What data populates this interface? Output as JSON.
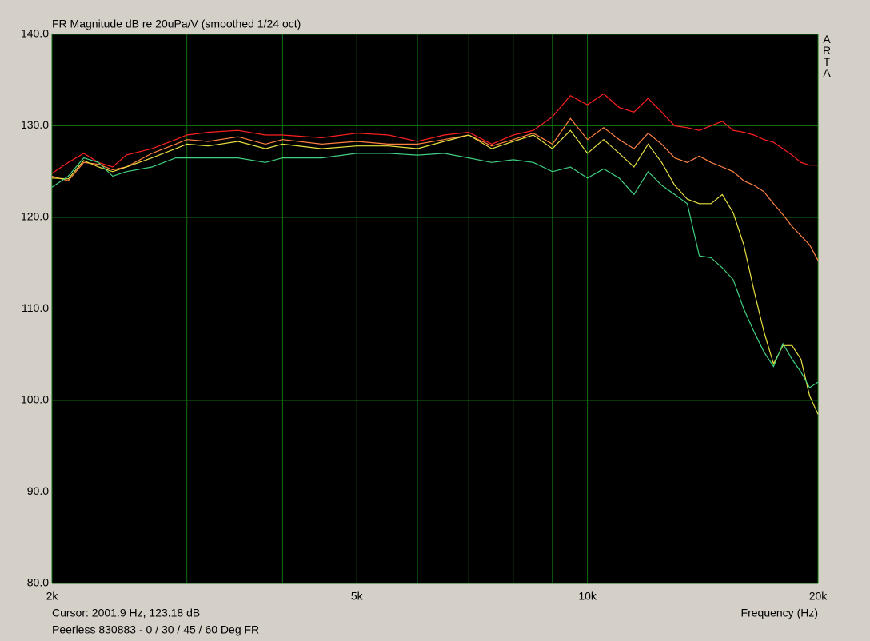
{
  "chart_data": {
    "type": "line",
    "title": "FR Magnitude dB re 20uPa/V (smoothed 1/24 oct)",
    "brand": "ARTA",
    "cursor_text": "Cursor: 2001.9 Hz, 123.18 dB",
    "x_label": "Frequency (Hz)",
    "caption": "Peerless 830883 - 0 / 30 / 45 / 60 Deg FR",
    "x_scale": "log",
    "grid": true,
    "xlim": [
      2000,
      20000
    ],
    "ylim": [
      80,
      140
    ],
    "xticks": [
      {
        "value": 2000,
        "label": "2k"
      },
      {
        "value": 5000,
        "label": "5k"
      },
      {
        "value": 10000,
        "label": "10k"
      },
      {
        "value": 20000,
        "label": "20k"
      }
    ],
    "xminorticks": [
      3000,
      4000,
      6000,
      7000,
      8000,
      9000
    ],
    "yticks": [
      {
        "value": 80,
        "label": "80.0"
      },
      {
        "value": 90,
        "label": "90.0"
      },
      {
        "value": 100,
        "label": "100.0"
      },
      {
        "value": 110,
        "label": "110.0"
      },
      {
        "value": 120,
        "label": "120.0"
      },
      {
        "value": 130,
        "label": "130.0"
      },
      {
        "value": 140,
        "label": "140.0"
      }
    ],
    "x": [
      2000,
      2100,
      2200,
      2300,
      2400,
      2500,
      2700,
      2900,
      3000,
      3200,
      3500,
      3800,
      4000,
      4500,
      5000,
      5500,
      6000,
      6500,
      7000,
      7500,
      8000,
      8500,
      9000,
      9500,
      10000,
      10500,
      11000,
      11500,
      12000,
      12500,
      13000,
      13500,
      14000,
      14500,
      15000,
      15500,
      16000,
      16500,
      17000,
      17500,
      18000,
      18500,
      19000,
      19500,
      20000
    ],
    "series": [
      {
        "color": "#ff2020",
        "values": [
          124.8,
          126.0,
          127.0,
          126.0,
          125.5,
          126.8,
          127.5,
          128.5,
          129.0,
          129.3,
          129.5,
          129.0,
          129.0,
          128.7,
          129.2,
          129.0,
          128.3,
          129.0,
          129.3,
          128.0,
          129.0,
          129.5,
          131.0,
          133.3,
          132.3,
          133.5,
          132.0,
          131.5,
          133.0,
          131.5,
          130.0,
          129.8,
          129.5,
          130.0,
          130.5,
          129.5,
          129.3,
          129.0,
          128.5,
          128.2,
          127.5,
          126.8,
          126.0,
          125.7,
          125.7
        ]
      },
      {
        "color": "#ff8040",
        "values": [
          124.5,
          124.0,
          126.0,
          125.8,
          125.2,
          125.5,
          127.0,
          128.0,
          128.5,
          128.3,
          128.8,
          128.0,
          128.5,
          128.0,
          128.3,
          128.0,
          128.0,
          128.5,
          129.0,
          127.8,
          128.5,
          129.2,
          128.0,
          130.8,
          128.5,
          129.8,
          128.5,
          127.5,
          129.2,
          128.0,
          126.5,
          126.0,
          126.7,
          126.0,
          125.5,
          125.0,
          124.0,
          123.5,
          122.8,
          121.5,
          120.3,
          119.0,
          118.0,
          117.0,
          115.3
        ]
      },
      {
        "color": "#e8e040",
        "values": [
          124.3,
          124.2,
          126.2,
          125.5,
          125.0,
          125.5,
          126.5,
          127.5,
          128.0,
          127.8,
          128.3,
          127.5,
          128.0,
          127.5,
          127.8,
          127.8,
          127.5,
          128.3,
          129.0,
          127.5,
          128.3,
          129.0,
          127.5,
          129.5,
          127.0,
          128.5,
          127.0,
          125.5,
          128.0,
          126.0,
          123.5,
          122.0,
          121.5,
          121.5,
          122.5,
          120.5,
          117.0,
          112.0,
          107.5,
          104.0,
          106.0,
          106.0,
          104.5,
          100.5,
          98.5
        ]
      },
      {
        "color": "#40d080",
        "values": [
          123.3,
          124.5,
          126.5,
          126.0,
          124.5,
          125.0,
          125.5,
          126.5,
          126.5,
          126.5,
          126.5,
          126.0,
          126.5,
          126.5,
          127.0,
          127.0,
          126.8,
          127.0,
          126.5,
          126.0,
          126.3,
          126.0,
          125.0,
          125.5,
          124.3,
          125.3,
          124.3,
          122.5,
          125.0,
          123.5,
          122.5,
          121.5,
          115.8,
          115.6,
          114.5,
          113.2,
          110.0,
          107.5,
          105.3,
          103.7,
          106.2,
          104.5,
          103.1,
          101.4,
          102.0
        ]
      }
    ]
  }
}
